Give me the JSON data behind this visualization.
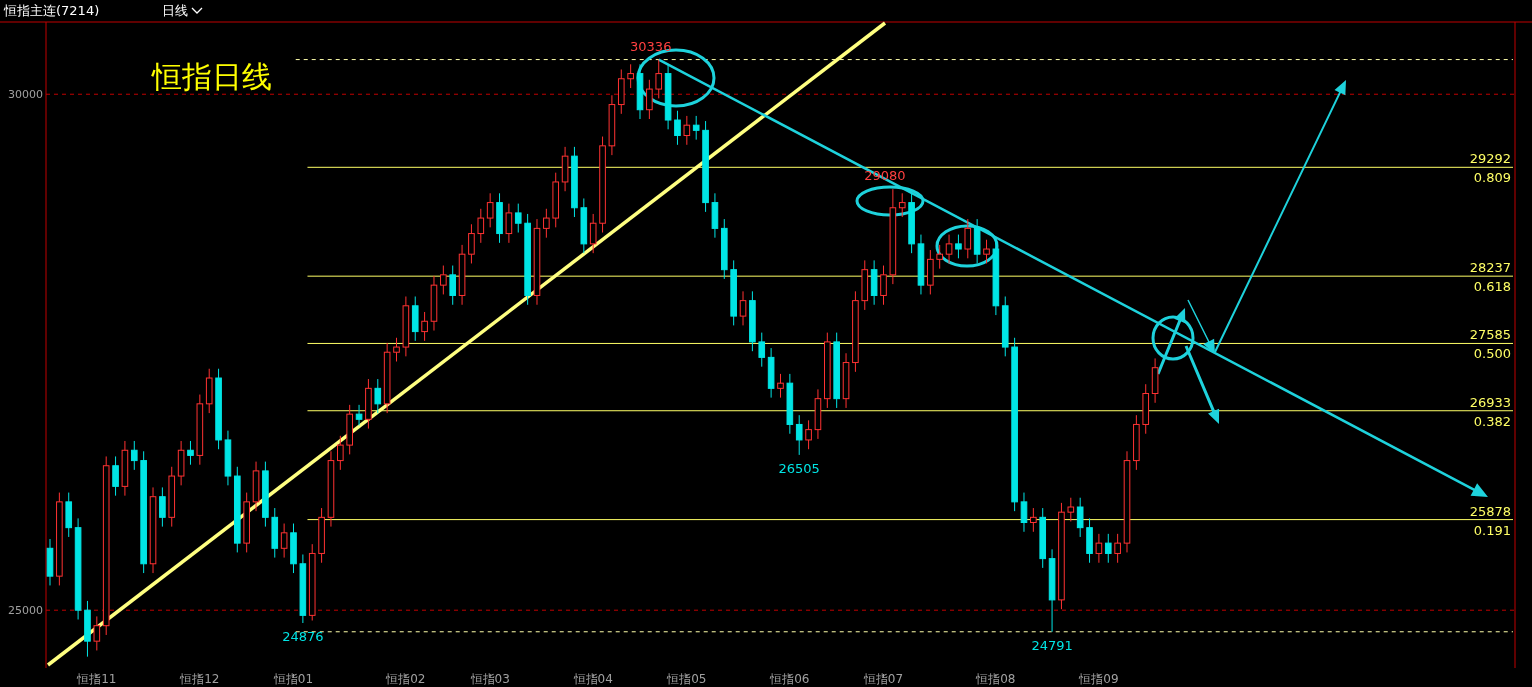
{
  "chart_data": {
    "type": "candlestick",
    "title": "恒指日线",
    "subtitle": "恒指主连(7214)",
    "annotations": [
      "日线",
      {
        "text": "0.809",
        "y": 29292
      },
      {
        "text": "0.618",
        "y": 28237
      },
      {
        "text": "0.500",
        "y": 27585
      },
      {
        "text": "0.382",
        "y": 26933
      },
      {
        "text": "0.191",
        "y": 25878
      }
    ],
    "categories": [
      null,
      null,
      null,
      null,
      null,
      "恒指11",
      null,
      null,
      null,
      null,
      null,
      null,
      null,
      null,
      null,
      null,
      "恒指12",
      null,
      null,
      null,
      null,
      null,
      null,
      null,
      null,
      null,
      "恒指01",
      null,
      null,
      null,
      null,
      null,
      null,
      null,
      null,
      null,
      null,
      null,
      "恒指02",
      null,
      null,
      null,
      null,
      null,
      null,
      null,
      null,
      "恒指03",
      null,
      null,
      null,
      null,
      null,
      null,
      null,
      null,
      null,
      null,
      "恒指04",
      null,
      null,
      null,
      null,
      null,
      null,
      null,
      null,
      null,
      "恒指05",
      null,
      null,
      null,
      null,
      null,
      null,
      null,
      null,
      null,
      null,
      "恒指06",
      null,
      null,
      null,
      null,
      null,
      null,
      null,
      null,
      null,
      "恒指07",
      null,
      null,
      null,
      null,
      null,
      null,
      null,
      null,
      null,
      null,
      null,
      "恒指08",
      null,
      null,
      null,
      null,
      null,
      null,
      null,
      null,
      null,
      null,
      "恒指09",
      null,
      null,
      null,
      null,
      null,
      null
    ],
    "ohlc": [
      [
        25600,
        25690,
        25240,
        25330
      ],
      [
        25330,
        26140,
        25240,
        26050
      ],
      [
        26050,
        26140,
        25710,
        25800
      ],
      [
        25800,
        25890,
        24910,
        25000
      ],
      [
        25000,
        25090,
        24550,
        24700
      ],
      [
        24700,
        24940,
        24610,
        24850
      ],
      [
        24850,
        26490,
        24760,
        26400
      ],
      [
        26400,
        26490,
        26110,
        26200
      ],
      [
        26200,
        26640,
        26110,
        26550
      ],
      [
        26550,
        26640,
        26360,
        26450
      ],
      [
        26450,
        26540,
        25360,
        25450
      ],
      [
        25450,
        26190,
        25360,
        26100
      ],
      [
        26100,
        26190,
        25810,
        25900
      ],
      [
        25900,
        26390,
        25810,
        26300
      ],
      [
        26300,
        26640,
        26210,
        26550
      ],
      [
        26550,
        26640,
        26410,
        26500
      ],
      [
        26500,
        27090,
        26410,
        27000
      ],
      [
        27000,
        27340,
        26910,
        27250
      ],
      [
        27250,
        27340,
        26560,
        26650
      ],
      [
        26650,
        26740,
        26210,
        26300
      ],
      [
        26300,
        26390,
        25560,
        25650
      ],
      [
        25650,
        26140,
        25560,
        26050
      ],
      [
        26050,
        26440,
        25960,
        26350
      ],
      [
        26350,
        26440,
        25810,
        25900
      ],
      [
        25900,
        25990,
        25510,
        25600
      ],
      [
        25600,
        25840,
        25510,
        25750
      ],
      [
        25750,
        25840,
        25360,
        25450
      ],
      [
        25450,
        25540,
        24876,
        24950
      ],
      [
        24950,
        25640,
        24900,
        25550
      ],
      [
        25550,
        25990,
        25460,
        25900
      ],
      [
        25900,
        26540,
        25810,
        26450
      ],
      [
        26450,
        26690,
        26360,
        26600
      ],
      [
        26600,
        26990,
        26510,
        26900
      ],
      [
        26900,
        26990,
        26790,
        26850
      ],
      [
        26850,
        27240,
        26760,
        27150
      ],
      [
        27150,
        27240,
        26910,
        27000
      ],
      [
        27000,
        27590,
        26910,
        27500
      ],
      [
        27500,
        27640,
        27410,
        27550
      ],
      [
        27550,
        28040,
        27460,
        27950
      ],
      [
        27950,
        28040,
        27610,
        27700
      ],
      [
        27700,
        27890,
        27610,
        27800
      ],
      [
        27800,
        28240,
        27710,
        28150
      ],
      [
        28150,
        28340,
        28060,
        28250
      ],
      [
        28250,
        28340,
        27960,
        28050
      ],
      [
        28050,
        28540,
        27960,
        28450
      ],
      [
        28450,
        28740,
        28360,
        28650
      ],
      [
        28650,
        28890,
        28560,
        28800
      ],
      [
        28800,
        29040,
        28710,
        28950
      ],
      [
        28950,
        29040,
        28560,
        28650
      ],
      [
        28650,
        28940,
        28560,
        28850
      ],
      [
        28850,
        28940,
        28660,
        28750
      ],
      [
        28750,
        28840,
        27960,
        28050
      ],
      [
        28050,
        28790,
        27960,
        28700
      ],
      [
        28700,
        28890,
        28610,
        28800
      ],
      [
        28800,
        29240,
        28710,
        29150
      ],
      [
        29150,
        29490,
        29060,
        29400
      ],
      [
        29400,
        29490,
        28810,
        28900
      ],
      [
        28900,
        28990,
        28460,
        28550
      ],
      [
        28550,
        28840,
        28460,
        28750
      ],
      [
        28750,
        29590,
        28660,
        29500
      ],
      [
        29500,
        29990,
        29410,
        29900
      ],
      [
        29900,
        30240,
        29810,
        30150
      ],
      [
        30150,
        30290,
        30060,
        30200
      ],
      [
        30200,
        30290,
        29760,
        29850
      ],
      [
        29850,
        30140,
        29760,
        30050
      ],
      [
        30050,
        30336,
        29960,
        30200
      ],
      [
        30200,
        30290,
        29660,
        29750
      ],
      [
        29750,
        29840,
        29510,
        29600
      ],
      [
        29600,
        29790,
        29510,
        29700
      ],
      [
        29700,
        29790,
        29560,
        29650
      ],
      [
        29650,
        29740,
        28860,
        28950
      ],
      [
        28950,
        29040,
        28610,
        28700
      ],
      [
        28700,
        28790,
        28210,
        28300
      ],
      [
        28300,
        28390,
        27760,
        27850
      ],
      [
        27850,
        28090,
        27760,
        28000
      ],
      [
        28000,
        28090,
        27510,
        27600
      ],
      [
        27600,
        27690,
        27360,
        27450
      ],
      [
        27450,
        27540,
        27060,
        27150
      ],
      [
        27150,
        27290,
        27060,
        27200
      ],
      [
        27200,
        27290,
        26710,
        26800
      ],
      [
        26800,
        26890,
        26505,
        26650
      ],
      [
        26650,
        26840,
        26560,
        26750
      ],
      [
        26750,
        27140,
        26660,
        27050
      ],
      [
        27050,
        27690,
        26960,
        27600
      ],
      [
        27600,
        27690,
        26960,
        27050
      ],
      [
        27050,
        27490,
        26960,
        27400
      ],
      [
        27400,
        28090,
        27310,
        28000
      ],
      [
        28000,
        28390,
        27910,
        28300
      ],
      [
        28300,
        28390,
        27960,
        28050
      ],
      [
        28050,
        28340,
        27960,
        28250
      ],
      [
        28250,
        29080,
        28160,
        28900
      ],
      [
        28900,
        29040,
        28810,
        28950
      ],
      [
        28950,
        29040,
        28460,
        28550
      ],
      [
        28550,
        28640,
        28060,
        28150
      ],
      [
        28150,
        28490,
        28060,
        28400
      ],
      [
        28400,
        28540,
        28310,
        28450
      ],
      [
        28450,
        28640,
        28360,
        28550
      ],
      [
        28550,
        28640,
        28410,
        28500
      ],
      [
        28500,
        28790,
        28410,
        28700
      ],
      [
        28700,
        28790,
        28360,
        28450
      ],
      [
        28450,
        28590,
        28360,
        28500
      ],
      [
        28500,
        28590,
        27860,
        27950
      ],
      [
        27950,
        28040,
        27460,
        27550
      ],
      [
        27550,
        27640,
        25960,
        26050
      ],
      [
        26050,
        26140,
        25760,
        25850
      ],
      [
        25850,
        25990,
        25760,
        25900
      ],
      [
        25900,
        25990,
        25410,
        25500
      ],
      [
        25500,
        25590,
        24791,
        25100
      ],
      [
        25100,
        26040,
        25010,
        25950
      ],
      [
        25950,
        26090,
        25860,
        26000
      ],
      [
        26000,
        26090,
        25710,
        25800
      ],
      [
        25800,
        25890,
        25460,
        25550
      ],
      [
        25550,
        25740,
        25460,
        25650
      ],
      [
        25650,
        25740,
        25460,
        25550
      ],
      [
        25550,
        25740,
        25460,
        25650
      ],
      [
        25650,
        26540,
        25560,
        26450
      ],
      [
        26450,
        26890,
        26360,
        26800
      ],
      [
        26800,
        27190,
        26710,
        27100
      ],
      [
        27100,
        27440,
        27010,
        27350
      ]
    ],
    "value_labels": [
      null,
      null,
      null,
      null,
      null,
      null,
      null,
      null,
      null,
      null,
      null,
      null,
      null,
      null,
      null,
      null,
      null,
      null,
      null,
      null,
      null,
      null,
      null,
      null,
      null,
      null,
      null,
      "24876",
      null,
      null,
      null,
      null,
      null,
      null,
      null,
      null,
      null,
      null,
      null,
      null,
      null,
      null,
      null,
      null,
      null,
      null,
      null,
      null,
      null,
      null,
      null,
      null,
      null,
      null,
      null,
      null,
      null,
      null,
      null,
      null,
      null,
      null,
      null,
      null,
      null,
      "30336",
      null,
      null,
      null,
      null,
      null,
      null,
      null,
      null,
      null,
      null,
      null,
      null,
      null,
      null,
      "26505",
      null,
      null,
      null,
      null,
      null,
      null,
      null,
      null,
      null,
      "29080",
      null,
      null,
      null,
      null,
      null,
      null,
      null,
      null,
      null,
      null,
      null,
      null,
      null,
      null,
      null,
      null,
      "24791",
      null,
      null,
      null,
      null,
      null,
      null,
      null,
      null,
      null,
      null,
      null
    ],
    "ylim": [
      24440,
      30700
    ],
    "yticks": [
      25000,
      30000
    ],
    "grid": "y",
    "ref_lines": [
      {
        "axis": "y",
        "value": 29292,
        "label": "29292",
        "color": "#ffff66",
        "line_style": "solid"
      },
      {
        "axis": "y",
        "value": 28237,
        "label": "28237",
        "color": "#ffff66",
        "line_style": "solid"
      },
      {
        "axis": "y",
        "value": 27585,
        "label": "27585",
        "color": "#ffff66",
        "line_style": "solid"
      },
      {
        "axis": "y",
        "value": 26933,
        "label": "26933",
        "color": "#ffff66",
        "line_style": "solid"
      },
      {
        "axis": "y",
        "value": 25878,
        "label": "25878",
        "color": "#ffff66",
        "line_style": "solid"
      },
      {
        "axis": "y",
        "value": 30336,
        "color": "#ffffaa",
        "line_style": "dashed"
      },
      {
        "axis": "y",
        "value": 24791,
        "color": "#ffffaa",
        "line_style": "dashed"
      }
    ]
  }
}
